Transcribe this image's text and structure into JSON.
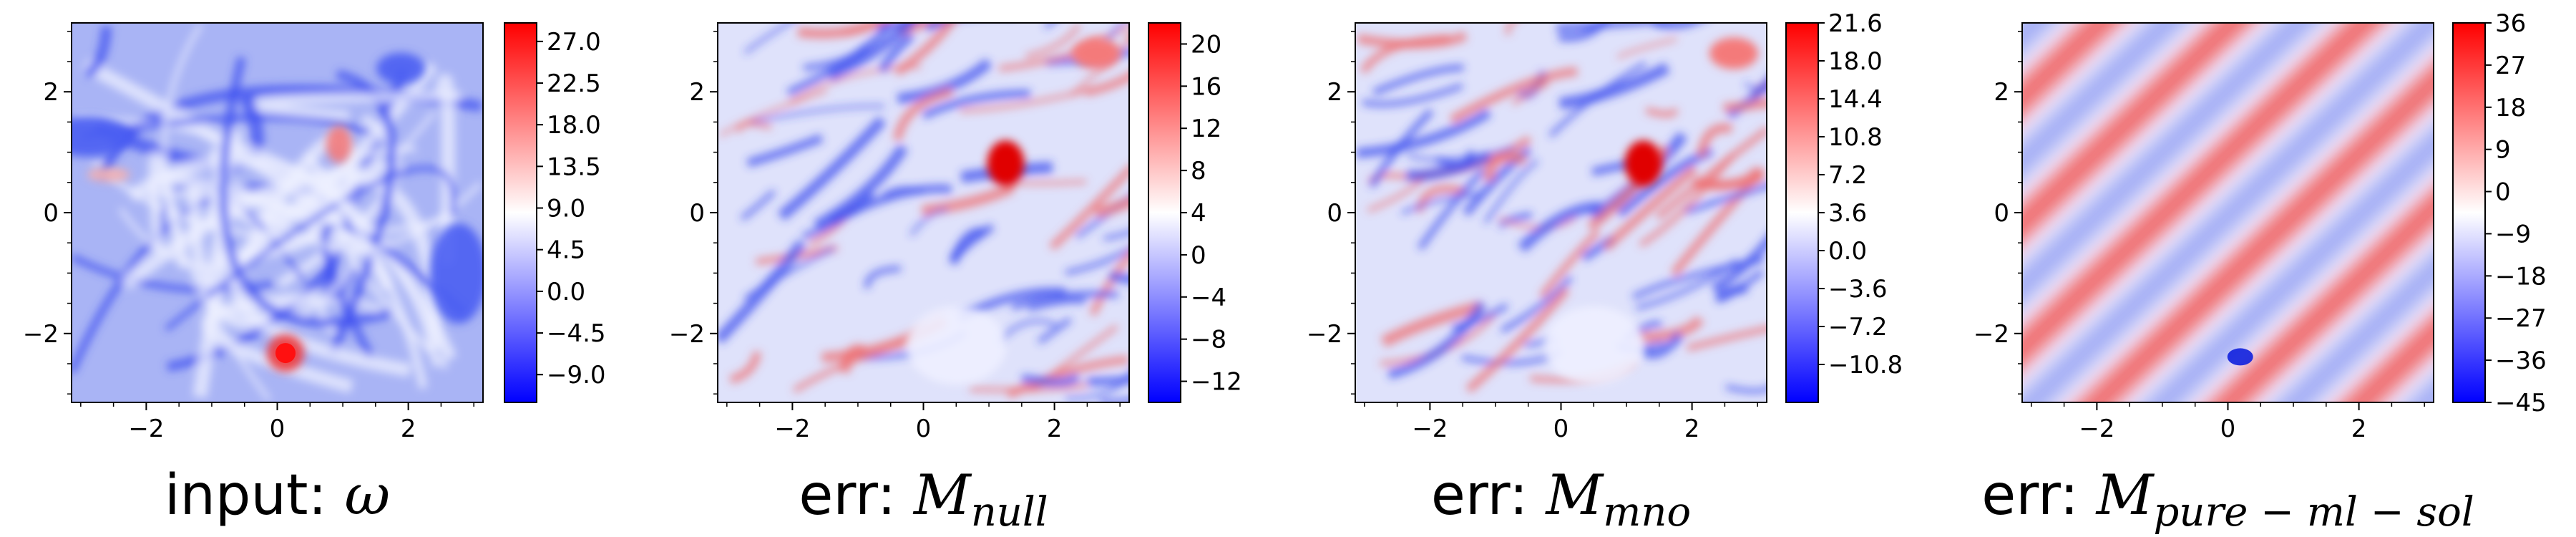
{
  "chart_data": [
    {
      "type": "heatmap",
      "title_prefix": "input: ",
      "title_symbol": "ω",
      "title_subscript": "",
      "xlim": [
        -3.14,
        3.14
      ],
      "ylim": [
        -3.14,
        3.14
      ],
      "xticks": [
        {
          "v": -2,
          "label": "−2"
        },
        {
          "v": 0,
          "label": "0"
        },
        {
          "v": 2,
          "label": "2"
        }
      ],
      "yticks": [
        {
          "v": 2,
          "label": "2"
        },
        {
          "v": 0,
          "label": "0"
        },
        {
          "v": -2,
          "label": "−2"
        }
      ],
      "colorbar": {
        "min": -12,
        "max": 29,
        "center": 9.0,
        "ticks": [
          {
            "v": 27.0,
            "label": "27.0"
          },
          {
            "v": 22.5,
            "label": "22.5"
          },
          {
            "v": 18.0,
            "label": "18.0"
          },
          {
            "v": 13.5,
            "label": "13.5"
          },
          {
            "v": 9.0,
            "label": "9.0"
          },
          {
            "v": 4.5,
            "label": "4.5"
          },
          {
            "v": 0.0,
            "label": "0.0"
          },
          {
            "v": -4.5,
            "label": "−4.5"
          },
          {
            "v": -9.0,
            "label": "−9.0"
          }
        ]
      },
      "colormap": "bwr",
      "pattern": "vortices"
    },
    {
      "type": "heatmap",
      "title_prefix": "err: ",
      "title_symbol": "M",
      "title_subscript": "null",
      "xlim": [
        -3.14,
        3.14
      ],
      "ylim": [
        -3.14,
        3.14
      ],
      "xticks": [
        {
          "v": -2,
          "label": "−2"
        },
        {
          "v": 0,
          "label": "0"
        },
        {
          "v": 2,
          "label": "2"
        }
      ],
      "yticks": [
        {
          "v": 2,
          "label": "2"
        },
        {
          "v": 0,
          "label": "0"
        },
        {
          "v": -2,
          "label": "−2"
        }
      ],
      "colorbar": {
        "min": -14,
        "max": 22,
        "center": 4,
        "ticks": [
          {
            "v": 20,
            "label": "20"
          },
          {
            "v": 16,
            "label": "16"
          },
          {
            "v": 12,
            "label": "12"
          },
          {
            "v": 8,
            "label": "8"
          },
          {
            "v": 4,
            "label": "4"
          },
          {
            "v": 0,
            "label": "0"
          },
          {
            "v": -4,
            "label": "−4"
          },
          {
            "v": -8,
            "label": "−8"
          },
          {
            "v": -12,
            "label": "−12"
          }
        ]
      },
      "colormap": "bwr",
      "pattern": "turbulent"
    },
    {
      "type": "heatmap",
      "title_prefix": "err: ",
      "title_symbol": "M",
      "title_subscript": "mno",
      "xlim": [
        -3.14,
        3.14
      ],
      "ylim": [
        -3.14,
        3.14
      ],
      "xticks": [
        {
          "v": -2,
          "label": "−2"
        },
        {
          "v": 0,
          "label": "0"
        },
        {
          "v": 2,
          "label": "2"
        }
      ],
      "yticks": [
        {
          "v": 2,
          "label": "2"
        },
        {
          "v": 0,
          "label": "0"
        },
        {
          "v": -2,
          "label": "−2"
        }
      ],
      "colorbar": {
        "min": -14.4,
        "max": 21.6,
        "center": 3.6,
        "ticks": [
          {
            "v": 21.6,
            "label": "21.6"
          },
          {
            "v": 18.0,
            "label": "18.0"
          },
          {
            "v": 14.4,
            "label": "14.4"
          },
          {
            "v": 10.8,
            "label": "10.8"
          },
          {
            "v": 7.2,
            "label": "7.2"
          },
          {
            "v": 3.6,
            "label": "3.6"
          },
          {
            "v": 0.0,
            "label": "0.0"
          },
          {
            "v": -3.6,
            "label": "−3.6"
          },
          {
            "v": -7.2,
            "label": "−7.2"
          },
          {
            "v": -10.8,
            "label": "−10.8"
          }
        ]
      },
      "colormap": "bwr",
      "pattern": "turbulent"
    },
    {
      "type": "heatmap",
      "title_prefix": "err: ",
      "title_symbol": "M",
      "title_subscript": "pure − ml − sol",
      "xlim": [
        -3.14,
        3.14
      ],
      "ylim": [
        -3.14,
        3.14
      ],
      "xticks": [
        {
          "v": -2,
          "label": "−2"
        },
        {
          "v": 0,
          "label": "0"
        },
        {
          "v": 2,
          "label": "2"
        }
      ],
      "yticks": [
        {
          "v": 2,
          "label": "2"
        },
        {
          "v": 0,
          "label": "0"
        },
        {
          "v": -2,
          "label": "−2"
        }
      ],
      "colorbar": {
        "min": -45,
        "max": 36,
        "center": -4.5,
        "ticks": [
          {
            "v": 36,
            "label": "36"
          },
          {
            "v": 27,
            "label": "27"
          },
          {
            "v": 18,
            "label": "18"
          },
          {
            "v": 9,
            "label": "9"
          },
          {
            "v": 0,
            "label": "0"
          },
          {
            "v": -9,
            "label": "−9"
          },
          {
            "v": -18,
            "label": "−18"
          },
          {
            "v": -27,
            "label": "−27"
          },
          {
            "v": -36,
            "label": "−36"
          },
          {
            "v": -45,
            "label": "−45"
          }
        ]
      },
      "colormap": "bwr",
      "pattern": "diagonal-stripes"
    }
  ]
}
